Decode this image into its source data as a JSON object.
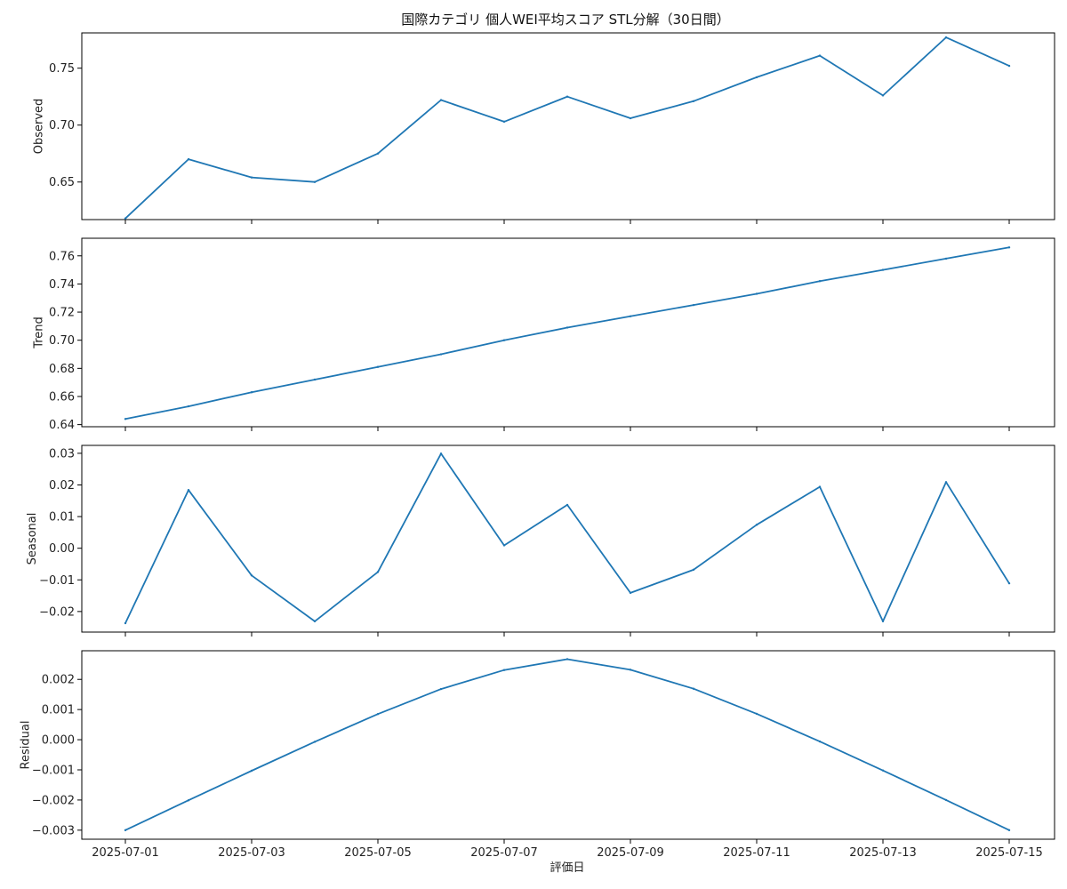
{
  "title": "国際カテゴリ 個人WEI平均スコア STL分解（30日間）",
  "xlabel": "評価日",
  "x_dates": [
    "2025-07-01",
    "2025-07-02",
    "2025-07-03",
    "2025-07-04",
    "2025-07-05",
    "2025-07-06",
    "2025-07-07",
    "2025-07-08",
    "2025-07-09",
    "2025-07-10",
    "2025-07-11",
    "2025-07-12",
    "2025-07-13",
    "2025-07-14",
    "2025-07-15"
  ],
  "x_tick_labels": [
    "2025-07-01",
    "2025-07-03",
    "2025-07-05",
    "2025-07-07",
    "2025-07-09",
    "2025-07-11",
    "2025-07-13",
    "2025-07-15"
  ],
  "colors": {
    "line": "#1f77b4",
    "axes": "#000000"
  },
  "chart_data": [
    {
      "type": "line",
      "ylabel": "Observed",
      "ylim": [
        0.617,
        0.781
      ],
      "yticks": [
        0.65,
        0.7,
        0.75
      ],
      "ytick_labels": [
        "0.65",
        "0.70",
        "0.75"
      ],
      "values": [
        0.618,
        0.67,
        0.654,
        0.65,
        0.675,
        0.722,
        0.703,
        0.725,
        0.706,
        0.721,
        0.742,
        0.761,
        0.726,
        0.777,
        0.752
      ]
    },
    {
      "type": "line",
      "ylabel": "Trend",
      "ylim": [
        0.6385,
        0.7725
      ],
      "yticks": [
        0.64,
        0.66,
        0.68,
        0.7,
        0.72,
        0.74,
        0.76
      ],
      "ytick_labels": [
        "0.64",
        "0.66",
        "0.68",
        "0.70",
        "0.72",
        "0.74",
        "0.76"
      ],
      "values": [
        0.644,
        0.653,
        0.663,
        0.672,
        0.681,
        0.69,
        0.7,
        0.709,
        0.717,
        0.725,
        0.733,
        0.742,
        0.75,
        0.758,
        0.766
      ]
    },
    {
      "type": "line",
      "ylabel": "Seasonal",
      "ylim": [
        -0.0265,
        0.0325
      ],
      "yticks": [
        -0.02,
        -0.01,
        0.0,
        0.01,
        0.02,
        0.03
      ],
      "ytick_labels": [
        "−0.02",
        "−0.01",
        "0.00",
        "0.01",
        "0.02",
        "0.03"
      ],
      "values": [
        -0.0237,
        0.0184,
        -0.0086,
        -0.0231,
        -0.0075,
        0.0299,
        0.0009,
        0.0137,
        -0.0141,
        -0.0068,
        0.0074,
        0.0194,
        -0.0231,
        0.0209,
        -0.0111
      ]
    },
    {
      "type": "line",
      "ylabel": "Residual",
      "ylim": [
        -0.0033,
        0.00295
      ],
      "yticks": [
        -0.003,
        -0.002,
        -0.001,
        0.0,
        0.001,
        0.002
      ],
      "ytick_labels": [
        "−0.003",
        "−0.002",
        "−0.001",
        "0.000",
        "0.001",
        "0.002"
      ],
      "values": [
        -0.003,
        -0.00201,
        -0.00103,
        -7e-05,
        0.00085,
        0.00168,
        0.00231,
        0.00267,
        0.00232,
        0.00169,
        0.00086,
        -6e-05,
        -0.00102,
        -0.002,
        -0.003
      ]
    }
  ]
}
